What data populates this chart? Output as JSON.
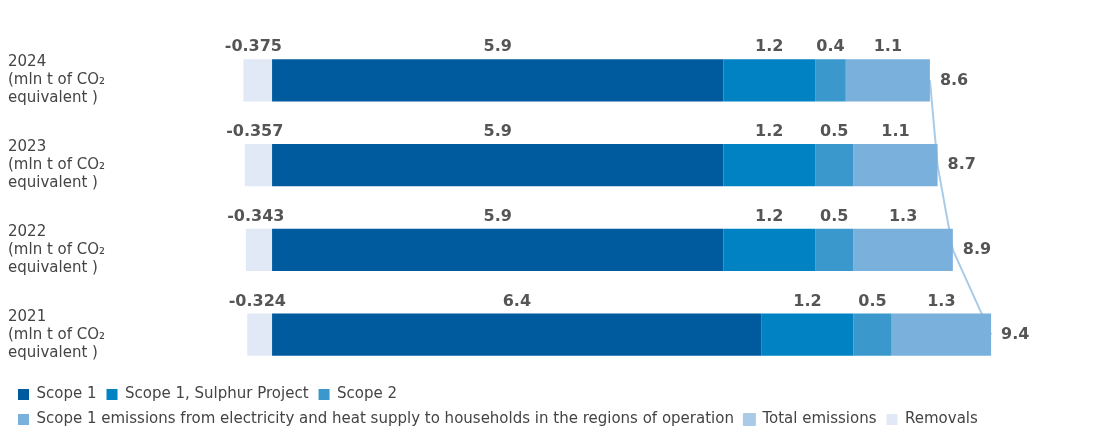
{
  "chart_data": {
    "type": "bar",
    "orientation": "horizontal",
    "stacked": true,
    "categories": [
      "2024 (mln t of CO₂ equivalent )",
      "2023 (mln t of CO₂ equivalent )",
      "2022 (mln t of CO₂ equivalent )",
      "2021 (mln t of CO₂ equivalent )"
    ],
    "series": [
      {
        "name": "Scope 1",
        "color": "#005a9e",
        "values": [
          5.9,
          5.9,
          5.9,
          6.4
        ]
      },
      {
        "name": "Scope 1, Sulphur Project",
        "color": "#0082c3",
        "values": [
          1.2,
          1.2,
          1.2,
          1.2
        ]
      },
      {
        "name": "Scope 2",
        "color": "#3a98cc",
        "values": [
          0.4,
          0.5,
          0.5,
          0.5
        ]
      },
      {
        "name": "Scope 1 emissions from electricity and heat supply to households in the regions of operation",
        "color": "#7ab0dc",
        "values": [
          1.1,
          1.1,
          1.3,
          1.3
        ]
      },
      {
        "name": "Total emissions",
        "type": "line",
        "color": "#a9cbe8",
        "values": [
          8.6,
          8.7,
          8.9,
          9.4
        ]
      },
      {
        "name": "Removals",
        "color": "#e0e9f5",
        "values": [
          -0.375,
          -0.357,
          -0.343,
          -0.324
        ]
      }
    ],
    "data_labels": true,
    "legend": "bottom",
    "tick_labels": "y",
    "grid": false,
    "marker": "none"
  }
}
